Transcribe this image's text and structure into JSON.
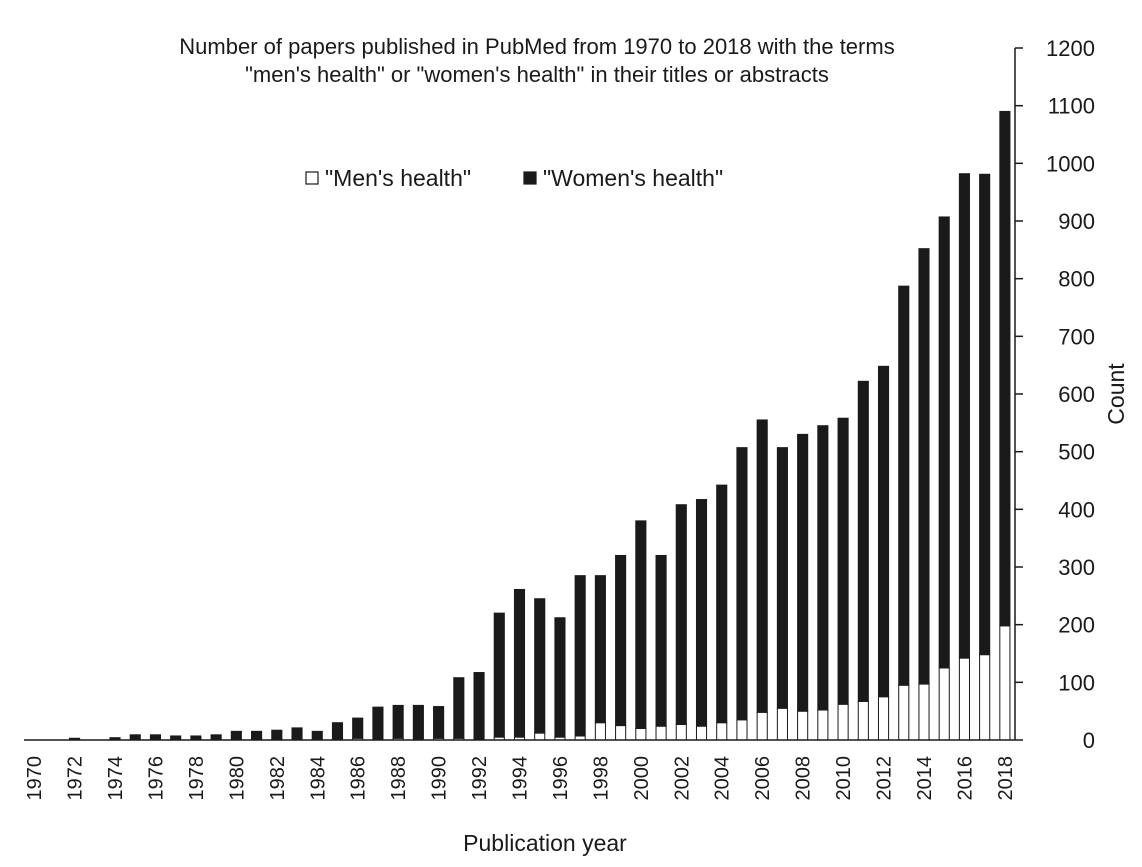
{
  "chart_data": {
    "type": "bar",
    "stacked": true,
    "title": "Number of papers published in PubMed from 1970 to 2018 with the terms \"men's health\" or \"women's health\" in their titles or abstracts",
    "title_lines": [
      "Number of papers published in PubMed from 1970 to 2018 with the terms",
      "\"men's health\" or \"women's health\" in their titles or abstracts"
    ],
    "xlabel": "Publication year",
    "ylabel": "Count",
    "y_axis_side": "right",
    "ylim": [
      0,
      1200
    ],
    "yticks": [
      0,
      100,
      200,
      300,
      400,
      500,
      600,
      700,
      800,
      900,
      1000,
      1100,
      1200
    ],
    "grid": false,
    "legend_position": "top-center",
    "categories": [
      1970,
      1971,
      1972,
      1973,
      1974,
      1975,
      1976,
      1977,
      1978,
      1979,
      1980,
      1981,
      1982,
      1983,
      1984,
      1985,
      1986,
      1987,
      1988,
      1989,
      1990,
      1991,
      1992,
      1993,
      1994,
      1995,
      1996,
      1997,
      1998,
      1999,
      2000,
      2001,
      2002,
      2003,
      2004,
      2005,
      2006,
      2007,
      2008,
      2009,
      2010,
      2011,
      2012,
      2013,
      2014,
      2015,
      2016,
      2017,
      2018
    ],
    "xtick_labels": [
      "1970",
      "1972",
      "1974",
      "1976",
      "1978",
      "1980",
      "1982",
      "1984",
      "1986",
      "1988",
      "1990",
      "1992",
      "1994",
      "1996",
      "1998",
      "2000",
      "2002",
      "2004",
      "2006",
      "2008",
      "2010",
      "2012",
      "2014",
      "2016",
      "2018"
    ],
    "series": [
      {
        "name": "\"Men's health\"",
        "color": "#ffffff",
        "values": [
          0,
          0,
          0,
          0,
          0,
          0,
          0,
          0,
          0,
          0,
          0,
          0,
          0,
          0,
          0,
          0,
          3,
          0,
          3,
          0,
          3,
          3,
          0,
          5,
          5,
          12,
          5,
          7,
          30,
          25,
          20,
          24,
          27,
          24,
          30,
          35,
          48,
          55,
          50,
          52,
          62,
          67,
          75,
          95,
          97,
          125,
          142,
          148,
          198
        ]
      },
      {
        "name": "\"Women's health\"",
        "color": "#1a1a1a",
        "values": [
          0,
          0,
          3,
          0,
          4,
          9,
          9,
          7,
          7,
          9,
          15,
          15,
          17,
          21,
          15,
          30,
          35,
          57,
          57,
          60,
          55,
          105,
          117,
          215,
          256,
          233,
          207,
          278,
          255,
          295,
          360,
          296,
          381,
          393,
          412,
          472,
          507,
          452,
          480,
          493,
          496,
          555,
          573,
          692,
          755,
          782,
          840,
          833,
          892
        ]
      }
    ]
  }
}
